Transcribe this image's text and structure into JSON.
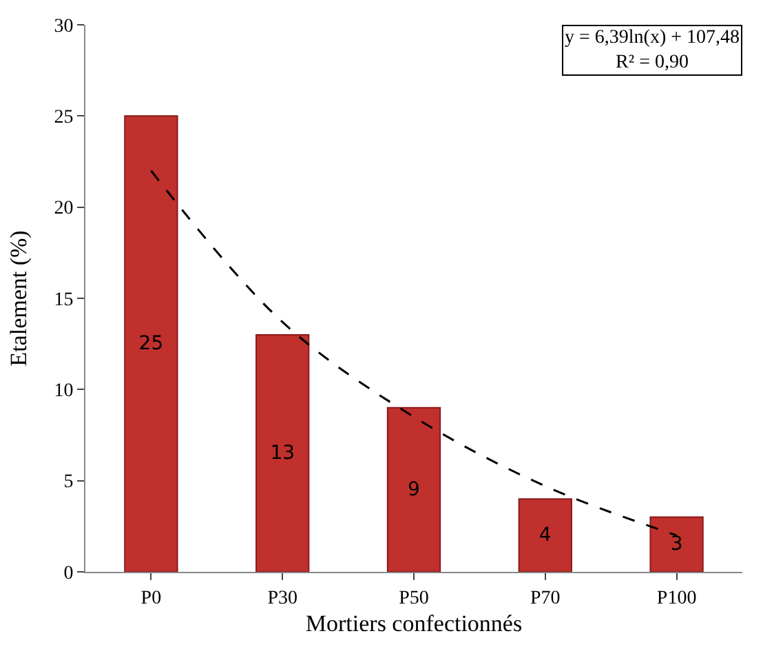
{
  "chart_data": {
    "type": "bar",
    "xlabel": "Mortiers confectionnés",
    "ylabel": "Etalement (%)",
    "categories": [
      "P0",
      "P30",
      "P50",
      "P70",
      "P100"
    ],
    "series": [
      {
        "color": "#c0302c",
        "values": [
          25,
          13,
          9,
          4,
          3
        ],
        "value_labels": [
          "25",
          "13",
          "9",
          "4",
          "3"
        ]
      },
      {
        "type": "line",
        "color": "#000000",
        "line_style": "dashed",
        "values": [
          22,
          13.7,
          8.5,
          4.7,
          2
        ]
      }
    ],
    "ylim": [
      0,
      30
    ],
    "yticks": [
      0,
      5,
      10,
      15,
      20,
      25,
      30
    ],
    "annotations": [
      "y = 6,39ln(x) + 107,48\nR² = 0,90"
    ]
  }
}
